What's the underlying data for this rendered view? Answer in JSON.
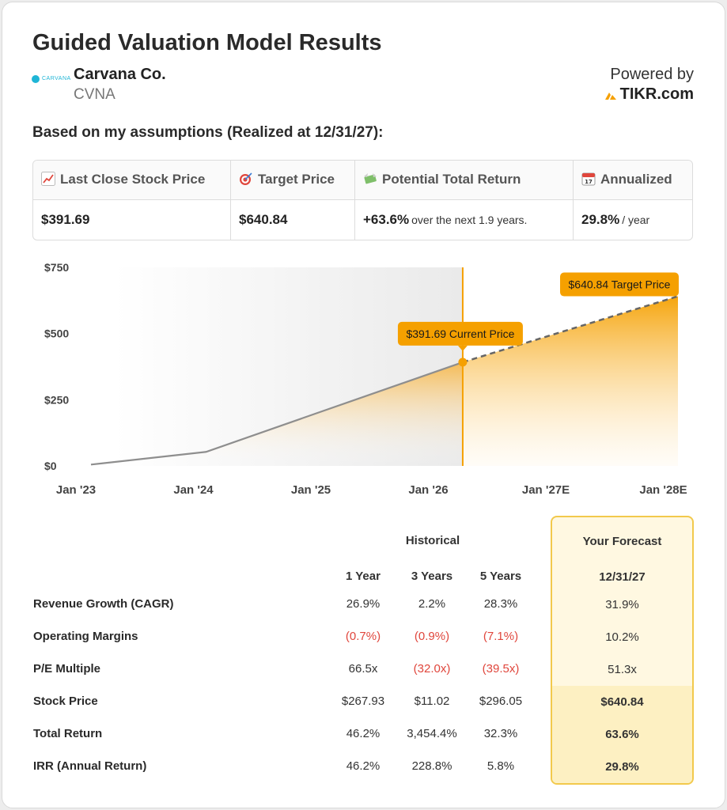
{
  "header": {
    "title": "Guided Valuation Model Results",
    "company_name": "Carvana Co.",
    "ticker": "CVNA",
    "logo_text": "CARVANA",
    "powered_by": "Powered by",
    "tikr": "TIKR.com",
    "subtitle": "Based on my assumptions (Realized at 12/31/27):"
  },
  "summary": {
    "last_close_label": "Last Close Stock Price",
    "last_close_value": "$391.69",
    "target_label": "Target Price",
    "target_value": "$640.84",
    "return_label": "Potential Total Return",
    "return_value": "+63.6%",
    "return_note": "over the next 1.9 years.",
    "annualized_label": "Annualized",
    "annualized_value": "29.8%",
    "annualized_note": "/ year"
  },
  "chart_data": {
    "type": "area",
    "x_ticks": [
      "Jan '23",
      "Jan '24",
      "Jan '25",
      "Jan '26",
      "Jan '27E",
      "Jan '28E"
    ],
    "y_ticks": [
      "$0",
      "$250",
      "$500",
      "$750"
    ],
    "ylim": [
      0,
      750
    ],
    "historical": [
      {
        "x": 2023.0,
        "y": 5
      },
      {
        "x": 2024.0,
        "y": 53
      },
      {
        "x": 2025.0,
        "y": 205
      },
      {
        "x": 2026.23,
        "y": 391.69
      }
    ],
    "forecast": [
      {
        "x": 2026.23,
        "y": 391.69
      },
      {
        "x": 2028.1,
        "y": 640.84
      }
    ],
    "current_label": "$391.69 Current Price",
    "target_label": "$640.84 Target Price",
    "colors": {
      "accent": "#f5a000",
      "line": "#8e8e8e",
      "dash": "#666666"
    }
  },
  "table": {
    "historical_header": "Historical",
    "forecast_header": "Your Forecast",
    "columns": [
      "1 Year",
      "3 Years",
      "5 Years"
    ],
    "forecast_column": "12/31/27",
    "rows": [
      {
        "label": "Revenue Growth (CAGR)",
        "values": [
          "26.9%",
          "2.2%",
          "28.3%"
        ],
        "forecast": "31.9%"
      },
      {
        "label": "Operating Margins",
        "values": [
          "(0.7%)",
          "(0.9%)",
          "(7.1%)"
        ],
        "forecast": "10.2%"
      },
      {
        "label": "P/E Multiple",
        "values": [
          "66.5x",
          "(32.0x)",
          "(39.5x)"
        ],
        "forecast": "51.3x"
      },
      {
        "label": "Stock Price",
        "values": [
          "$267.93",
          "$11.02",
          "$296.05"
        ],
        "forecast": "$640.84"
      },
      {
        "label": "Total Return",
        "values": [
          "46.2%",
          "3,454.4%",
          "32.3%"
        ],
        "forecast": "63.6%"
      },
      {
        "label": "IRR (Annual Return)",
        "values": [
          "46.2%",
          "228.8%",
          "5.8%"
        ],
        "forecast": "29.8%"
      }
    ]
  }
}
